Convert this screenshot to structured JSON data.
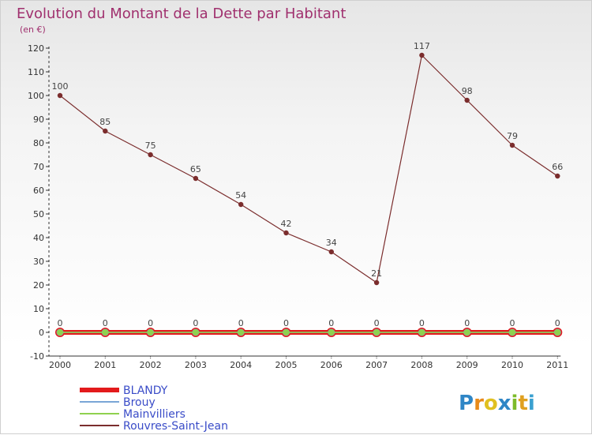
{
  "chart_data": {
    "type": "line",
    "title": "Evolution du Montant de la Dette par Habitant",
    "ylabel": "(en €)",
    "xlabel": "",
    "x": [
      "2000",
      "2001",
      "2002",
      "2003",
      "2004",
      "2005",
      "2006",
      "2007",
      "2008",
      "2009",
      "2010",
      "2011"
    ],
    "ylim": [
      -10,
      120
    ],
    "yticks": [
      -10,
      0,
      10,
      20,
      30,
      40,
      50,
      60,
      70,
      80,
      90,
      100,
      110,
      120
    ],
    "grid": false,
    "legend_position": "bottom-left",
    "series": [
      {
        "name": "BLANDY",
        "color": "#e31a1c",
        "values": [
          0,
          0,
          0,
          0,
          0,
          0,
          0,
          0,
          0,
          0,
          0,
          0
        ]
      },
      {
        "name": "Brouy",
        "color": "#7aa6d6",
        "values": [
          0,
          0,
          0,
          0,
          0,
          0,
          0,
          0,
          0,
          0,
          0,
          0
        ]
      },
      {
        "name": "Mainvilliers",
        "color": "#8fd14f",
        "values": [
          0,
          0,
          0,
          0,
          0,
          0,
          0,
          0,
          0,
          0,
          0,
          0
        ]
      },
      {
        "name": "Rouvres-Saint-Jean",
        "color": "#7b2d2d",
        "values": [
          100,
          85,
          75,
          65,
          54,
          42,
          34,
          21,
          117,
          98,
          79,
          66
        ]
      }
    ]
  },
  "brand": {
    "name": "Proxiti"
  }
}
